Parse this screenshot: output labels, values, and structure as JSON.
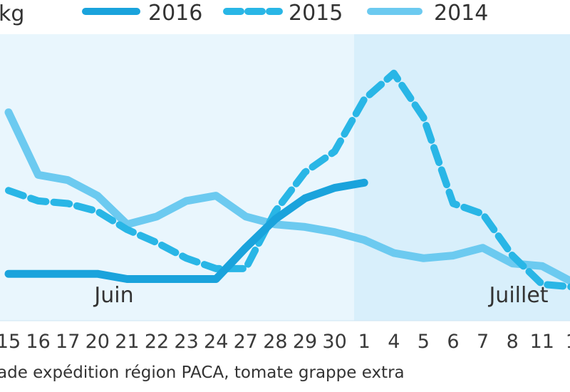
{
  "chart_data": {
    "type": "line",
    "unit_label": "kg",
    "categories": [
      "15",
      "16",
      "17",
      "20",
      "21",
      "22",
      "23",
      "24",
      "27",
      "28",
      "29",
      "30",
      "1",
      "4",
      "5",
      "6",
      "7",
      "8",
      "11",
      "1"
    ],
    "months": [
      {
        "label": "Juin",
        "from": 0,
        "to": 11
      },
      {
        "label": "Juillet",
        "from": 12,
        "to": 19
      }
    ],
    "series": [
      {
        "name": "2016",
        "color": "#1aa3dc",
        "style": "solid",
        "values": [
          1.8,
          1.8,
          1.8,
          1.8,
          1.6,
          1.6,
          1.6,
          1.6,
          2.8,
          3.9,
          4.7,
          5.1,
          5.3,
          null,
          null,
          null,
          null,
          null,
          null,
          null
        ]
      },
      {
        "name": "2015",
        "color": "#29b6e6",
        "style": "dashed",
        "values": [
          5.0,
          4.6,
          4.5,
          4.2,
          3.5,
          3.0,
          2.4,
          2.0,
          2.0,
          4.2,
          5.7,
          6.5,
          8.5,
          9.5,
          7.8,
          4.5,
          4.1,
          2.5,
          1.4,
          1.3
        ]
      },
      {
        "name": "2014",
        "color": "#6ccaf0",
        "style": "solid",
        "values": [
          8.0,
          5.6,
          5.4,
          4.8,
          3.7,
          4.0,
          4.6,
          4.8,
          4.0,
          3.7,
          3.6,
          3.4,
          3.1,
          2.6,
          2.4,
          2.5,
          2.8,
          2.2,
          2.1,
          1.5
        ]
      }
    ],
    "ylim": [
      0,
      11
    ],
    "source_text": "ade expédition région  PACA, tomate grappe extra",
    "background_colors": {
      "june": "#e9f6fd",
      "july": "#d8effb"
    }
  }
}
